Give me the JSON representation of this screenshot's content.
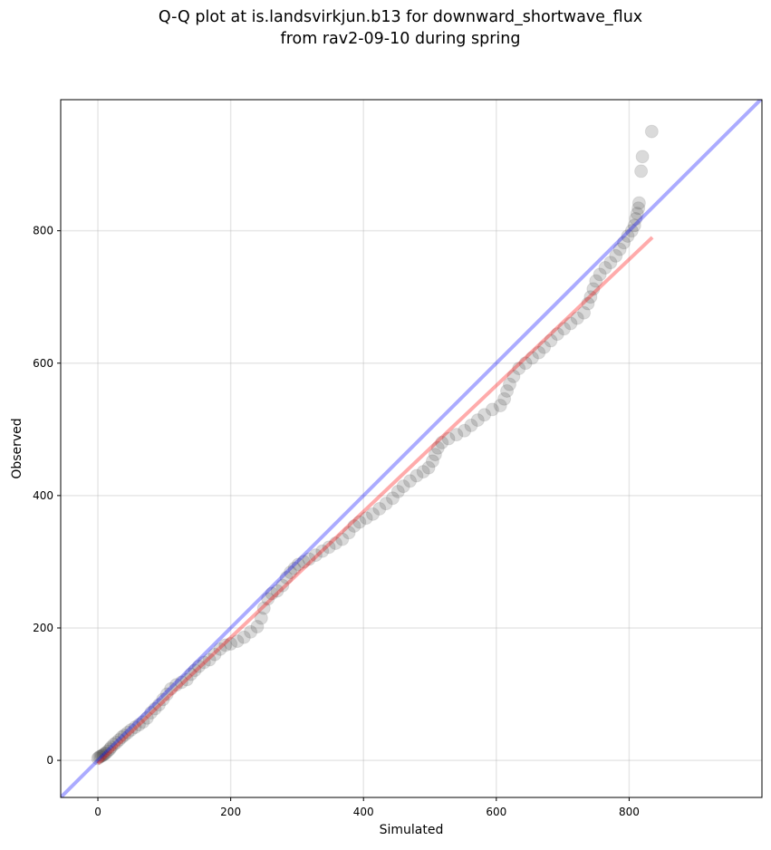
{
  "chart_data": {
    "type": "scatter",
    "title_line1": "Q-Q plot at is.landsvirkjun.b13 for downward_shortwave_flux",
    "title_line2": "from rav2-09-10 during spring",
    "xlabel": "Simulated",
    "ylabel": "Observed",
    "xlim": [
      -56,
      1000
    ],
    "ylim": [
      -56,
      998
    ],
    "xticks": [
      0,
      200,
      400,
      600,
      800
    ],
    "yticks": [
      0,
      200,
      400,
      600,
      800
    ],
    "grid": true,
    "colors": {
      "points": "#333333",
      "identity": "#0000ff",
      "fit": "#ff0000"
    },
    "identity_line": {
      "x": [
        -56,
        1000
      ],
      "y": [
        -56,
        1000
      ]
    },
    "fit_line": {
      "x": [
        0,
        835
      ],
      "y": [
        -5,
        790
      ]
    },
    "points": [
      [
        0,
        3
      ],
      [
        2,
        5
      ],
      [
        4,
        6
      ],
      [
        6,
        7
      ],
      [
        8,
        8
      ],
      [
        10,
        10
      ],
      [
        12,
        11
      ],
      [
        15,
        14
      ],
      [
        18,
        17
      ],
      [
        20,
        20
      ],
      [
        24,
        24
      ],
      [
        28,
        27
      ],
      [
        32,
        31
      ],
      [
        36,
        35
      ],
      [
        40,
        38
      ],
      [
        45,
        42
      ],
      [
        50,
        46
      ],
      [
        56,
        50
      ],
      [
        62,
        54
      ],
      [
        68,
        58
      ],
      [
        74,
        64
      ],
      [
        80,
        72
      ],
      [
        86,
        78
      ],
      [
        92,
        84
      ],
      [
        98,
        92
      ],
      [
        104,
        100
      ],
      [
        110,
        108
      ],
      [
        118,
        114
      ],
      [
        126,
        118
      ],
      [
        134,
        122
      ],
      [
        140,
        130
      ],
      [
        146,
        136
      ],
      [
        152,
        142
      ],
      [
        160,
        148
      ],
      [
        168,
        152
      ],
      [
        176,
        160
      ],
      [
        184,
        168
      ],
      [
        192,
        174
      ],
      [
        200,
        176
      ],
      [
        210,
        180
      ],
      [
        220,
        186
      ],
      [
        230,
        194
      ],
      [
        240,
        202
      ],
      [
        246,
        215
      ],
      [
        250,
        230
      ],
      [
        256,
        244
      ],
      [
        262,
        252
      ],
      [
        270,
        256
      ],
      [
        278,
        264
      ],
      [
        284,
        276
      ],
      [
        290,
        284
      ],
      [
        296,
        290
      ],
      [
        302,
        296
      ],
      [
        310,
        300
      ],
      [
        318,
        304
      ],
      [
        328,
        310
      ],
      [
        338,
        316
      ],
      [
        348,
        322
      ],
      [
        358,
        328
      ],
      [
        368,
        334
      ],
      [
        378,
        344
      ],
      [
        386,
        354
      ],
      [
        394,
        360
      ],
      [
        404,
        366
      ],
      [
        414,
        372
      ],
      [
        424,
        380
      ],
      [
        434,
        388
      ],
      [
        444,
        396
      ],
      [
        452,
        406
      ],
      [
        460,
        414
      ],
      [
        470,
        422
      ],
      [
        480,
        430
      ],
      [
        490,
        436
      ],
      [
        498,
        442
      ],
      [
        504,
        452
      ],
      [
        508,
        462
      ],
      [
        512,
        472
      ],
      [
        518,
        480
      ],
      [
        528,
        486
      ],
      [
        540,
        492
      ],
      [
        552,
        498
      ],
      [
        562,
        506
      ],
      [
        572,
        514
      ],
      [
        582,
        522
      ],
      [
        594,
        530
      ],
      [
        606,
        536
      ],
      [
        612,
        546
      ],
      [
        616,
        558
      ],
      [
        620,
        568
      ],
      [
        626,
        580
      ],
      [
        634,
        592
      ],
      [
        644,
        600
      ],
      [
        654,
        608
      ],
      [
        664,
        616
      ],
      [
        672,
        624
      ],
      [
        682,
        634
      ],
      [
        692,
        644
      ],
      [
        702,
        652
      ],
      [
        712,
        660
      ],
      [
        722,
        668
      ],
      [
        732,
        676
      ],
      [
        738,
        690
      ],
      [
        742,
        700
      ],
      [
        746,
        712
      ],
      [
        750,
        724
      ],
      [
        756,
        734
      ],
      [
        764,
        744
      ],
      [
        772,
        752
      ],
      [
        780,
        762
      ],
      [
        786,
        772
      ],
      [
        792,
        782
      ],
      [
        798,
        792
      ],
      [
        804,
        800
      ],
      [
        808,
        808
      ],
      [
        810,
        818
      ],
      [
        812,
        826
      ],
      [
        814,
        834
      ],
      [
        815,
        842
      ],
      [
        818,
        890
      ],
      [
        820,
        912
      ],
      [
        834,
        950
      ]
    ]
  }
}
